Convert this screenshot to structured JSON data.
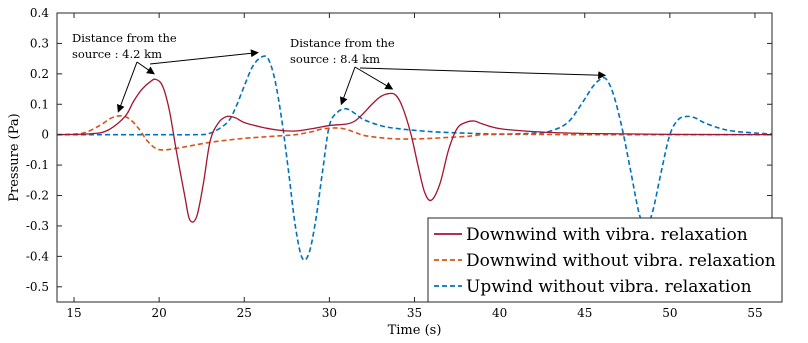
{
  "chart_data": {
    "type": "line",
    "title": "",
    "xlabel": "Time (s)",
    "ylabel": "Pressure (Pa)",
    "xlim": [
      14,
      56
    ],
    "ylim": [
      -0.55,
      0.4
    ],
    "x_ticks": [
      15,
      20,
      25,
      30,
      35,
      40,
      45,
      50,
      55
    ],
    "y_ticks": [
      0.4,
      0.3,
      0.2,
      0.1,
      0,
      -0.1,
      -0.2,
      -0.3,
      -0.4,
      -0.5
    ],
    "x_tick_labels": [
      "15",
      "20",
      "25",
      "30",
      "35",
      "40",
      "45",
      "50",
      "55"
    ],
    "y_tick_labels": [
      "0.4",
      "0.3",
      "0.2",
      "0.1",
      "0",
      "-0.1",
      "-0.2",
      "-0.3",
      "-0.4",
      "-0.5"
    ],
    "grid": false,
    "legend_position": "bottom-right",
    "series": [
      {
        "name": "Downwind with vibra. relaxation",
        "color": "#a2142f",
        "dash": "solid",
        "x": [
          14,
          16,
          17,
          18,
          18.5,
          19,
          19.5,
          19.8,
          20.2,
          20.6,
          21,
          21.5,
          21.8,
          22.2,
          22.6,
          23,
          23.5,
          24,
          24.5,
          25,
          26,
          27,
          28,
          29,
          30,
          31,
          31.5,
          32,
          32.5,
          33,
          33.5,
          33.9,
          34.3,
          34.8,
          35.2,
          35.6,
          36,
          36.5,
          37,
          37.5,
          38,
          38.5,
          39,
          40,
          42,
          45,
          50,
          56
        ],
        "y": [
          0,
          0.003,
          0.015,
          0.06,
          0.11,
          0.15,
          0.175,
          0.182,
          0.16,
          0.08,
          -0.05,
          -0.2,
          -0.28,
          -0.27,
          -0.16,
          -0.02,
          0.04,
          0.06,
          0.055,
          0.04,
          0.025,
          0.015,
          0.012,
          0.02,
          0.03,
          0.035,
          0.045,
          0.07,
          0.1,
          0.125,
          0.135,
          0.13,
          0.09,
          0.0,
          -0.1,
          -0.19,
          -0.215,
          -0.16,
          -0.05,
          0.02,
          0.04,
          0.045,
          0.035,
          0.02,
          0.01,
          0.004,
          0.001,
          0
        ]
      },
      {
        "name": "Downwind without vibra. relaxation",
        "color": "#d95319",
        "dash": "dashed",
        "x": [
          14,
          15.5,
          16.5,
          17.2,
          17.8,
          18.3,
          18.8,
          19.3,
          19.8,
          20.3,
          21,
          22,
          23,
          24,
          25,
          26,
          27,
          28,
          29,
          29.5,
          30.2,
          30.8,
          31.4,
          32,
          33,
          34,
          35,
          36,
          37,
          38,
          38.5,
          39,
          40,
          42,
          45,
          50,
          56
        ],
        "y": [
          0,
          0.005,
          0.03,
          0.055,
          0.062,
          0.05,
          0.02,
          -0.02,
          -0.045,
          -0.05,
          -0.045,
          -0.035,
          -0.025,
          -0.018,
          -0.012,
          -0.008,
          -0.004,
          0,
          0.01,
          0.018,
          0.022,
          0.02,
          0.01,
          -0.002,
          -0.01,
          -0.014,
          -0.014,
          -0.012,
          -0.009,
          -0.006,
          -0.003,
          0,
          0.001,
          0.001,
          0,
          0,
          0
        ]
      },
      {
        "name": "Upwind without vibra. relaxation",
        "color": "#0072bd",
        "dash": "dashed",
        "x": [
          14,
          20,
          22,
          23,
          24,
          24.5,
          25,
          25.5,
          26,
          26.4,
          26.8,
          27.2,
          27.6,
          28,
          28.4,
          28.8,
          29.2,
          29.6,
          30,
          30.5,
          31,
          31.5,
          32,
          33,
          34,
          36,
          38,
          40,
          42,
          43,
          44,
          44.8,
          45.5,
          46,
          46.3,
          46.7,
          47.2,
          47.7,
          48.2,
          48.6,
          49,
          49.5,
          50,
          50.5,
          51,
          51.5,
          52,
          53,
          54,
          56
        ],
        "y": [
          0,
          0,
          0,
          0.005,
          0.04,
          0.09,
          0.16,
          0.225,
          0.255,
          0.25,
          0.18,
          0.05,
          -0.12,
          -0.3,
          -0.405,
          -0.39,
          -0.28,
          -0.12,
          0.03,
          0.075,
          0.085,
          0.07,
          0.05,
          0.03,
          0.02,
          0.01,
          0.005,
          0.002,
          0.005,
          0.012,
          0.04,
          0.1,
          0.16,
          0.185,
          0.18,
          0.13,
          0.02,
          -0.12,
          -0.26,
          -0.305,
          -0.25,
          -0.12,
          0.0,
          0.05,
          0.06,
          0.055,
          0.04,
          0.02,
          0.01,
          0.002
        ]
      }
    ],
    "annotations": [
      {
        "lines": [
          "Distance from the",
          "source :  4.2 km"
        ]
      },
      {
        "lines": [
          "Distance from the",
          "source :  8.4 km"
        ]
      }
    ]
  }
}
